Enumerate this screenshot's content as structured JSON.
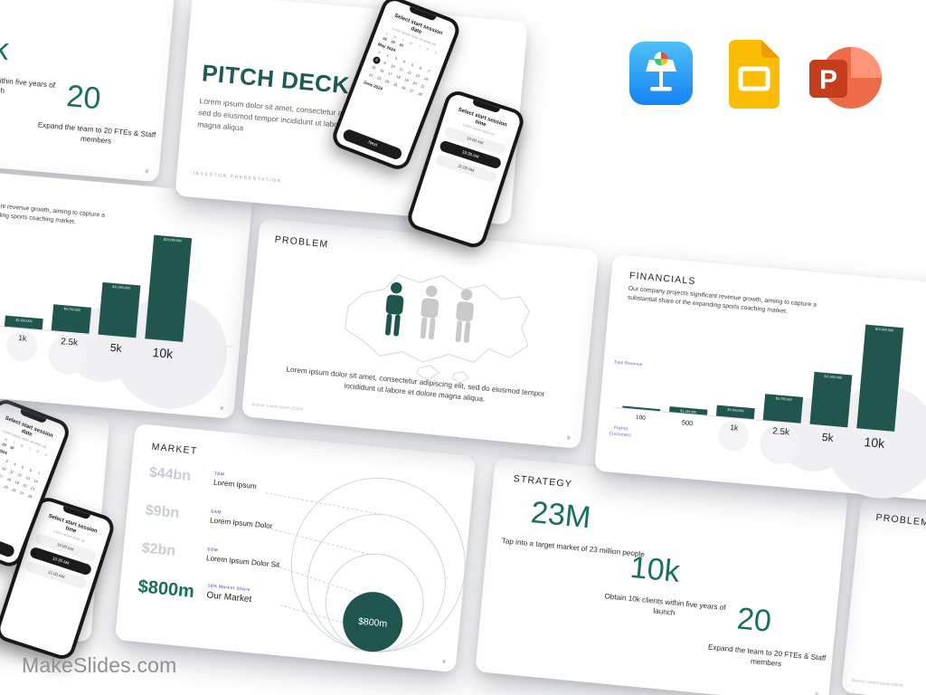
{
  "brand": {
    "site": "MakeSlides.com"
  },
  "colors": {
    "brand_teal": "#1d5b54",
    "stat_green": "#17705a",
    "bar_teal": "#20564f",
    "accent_purple": "#6f6fdb",
    "muted_gray_value": "#c7cdd4",
    "keynote_blue": "#1d9bf0",
    "slides_yellow": "#fbbc04",
    "powerpoint_red": "#c43e1c"
  },
  "app_icons": [
    {
      "name": "keynote"
    },
    {
      "name": "google-slides"
    },
    {
      "name": "powerpoint"
    }
  ],
  "slides": {
    "pitch_deck": {
      "title": "PITCH DECK",
      "body": "Lorem ipsum dolor sit amet, consectetur adipiscing elit, sed do eiusmod tempor incididunt ut labore et dolore magna aliqua",
      "footer": "INVESTOR  PRESENTATION",
      "phone_calendar": {
        "header": "Select start session date",
        "subheader": "Lorem ipsum dolor sit amet elit",
        "weekdays": [
          "S",
          "M",
          "T",
          "W",
          "T",
          "F",
          "S"
        ],
        "prev_days": [
          "28",
          "29",
          "30"
        ],
        "month": "May 2024",
        "days_in_grid": 28,
        "selected_day": 8,
        "next_month": "June 2024",
        "button": "Next"
      },
      "phone_time": {
        "header": "Select start session time",
        "subheader": "Lorem ipsum dolor sit",
        "slots": [
          "10:00 AM",
          "10:30 AM",
          "11:00 AM"
        ],
        "selected_index": 1
      }
    },
    "problem": {
      "title": "PROBLEM",
      "body": "Lorem ipsum dolor sit amet, consectetur adipiscing elit, sed do eiusmod tempor incididunt ut labore et dolore magna aliqua.",
      "source": "Source: Lorem Ipsum (2024)"
    },
    "financials": {
      "title": "FINANCIALS",
      "body": "Our company projects significant revenue growth, aiming to capture a substantial share of the expanding sports coaching market.",
      "chart_data": {
        "type": "bar",
        "categories": [
          "100",
          "500",
          "1k",
          "2.5k",
          "5k",
          "10k"
        ],
        "values": [
          230000,
          1150000,
          2300000,
          5750000,
          11500000,
          23000000
        ],
        "value_labels": [
          "",
          "$1,150,000",
          "$2,300,000",
          "$5,750,000",
          "$11,500,000",
          "$23,000,000"
        ],
        "ylabel": "Total Revenue",
        "xlabel": "Paying Customers",
        "legend": "none",
        "grid": "off"
      }
    },
    "market": {
      "title": "MARKET",
      "rows": [
        {
          "value": "$44bn",
          "tag": "TAM",
          "label": "Lorem Ipsum"
        },
        {
          "value": "$9bn",
          "tag": "SAM",
          "label": "Lorem Ipsum Dolor"
        },
        {
          "value": "$2bn",
          "tag": "SOM",
          "label": "Lorem Ipsum Dolor Sit"
        },
        {
          "value": "$800m",
          "tag": "10% Market Share",
          "label": "Our Market"
        }
      ],
      "bubble_label": "$800m"
    },
    "strategy": {
      "title": "STRATEGY",
      "stats": [
        {
          "value": "23M",
          "caption": "Tap into a target market of 23 million people"
        },
        {
          "value": "10k",
          "caption": "Obtain 10k clients within five years of launch"
        },
        {
          "value": "20",
          "caption": "Expand the team to 20 FTEs & Staff members"
        }
      ]
    }
  }
}
